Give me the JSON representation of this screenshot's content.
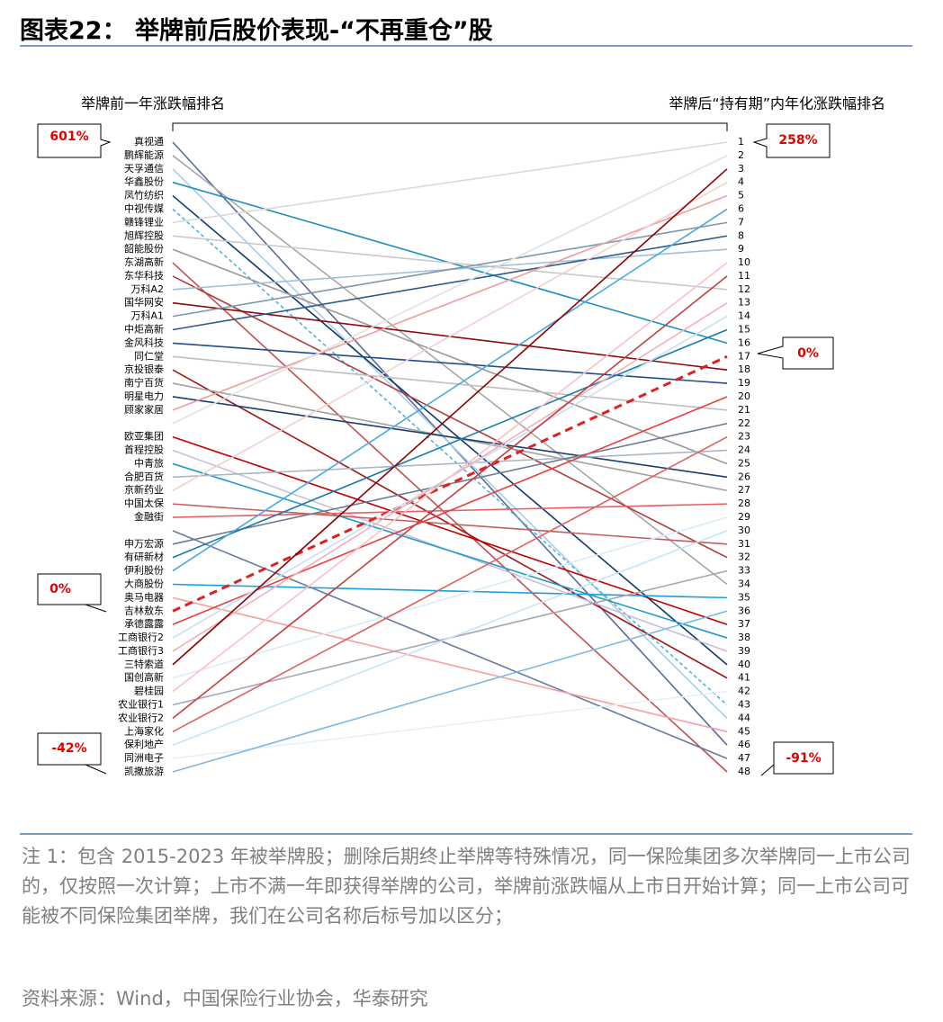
{
  "chart_data": {
    "type": "slope",
    "title": "图表22： 举牌前后股价表现-“不再重仓”股",
    "left_axis_label": "举牌前一年涨跌幅排名",
    "right_axis_label": "举牌后“持有期”内年化涨跌幅排名",
    "categories": [
      "真视通",
      "鹏辉能源",
      "天孚通信",
      "华鑫股份",
      "凤竹纺织",
      "中视传媒",
      "赣锋锂业",
      "旭辉控股",
      "韶能股份",
      "东湖高新",
      "东华科技",
      "万科A2",
      "国华网安",
      "万科A1",
      "中炬高新",
      "金风科技",
      "同仁堂",
      "京投银泰",
      "南宁百货",
      "明星电力",
      "顾家家居",
      null,
      "欧亚集团",
      "首程控股",
      "中青旅",
      "合肥百货",
      "京新药业",
      "中国太保",
      "金融街",
      null,
      "申万宏源",
      "有研新材",
      "伊利股份",
      "大商股份",
      "奥马电器",
      "吉林敖东",
      "承德露露",
      "工商银行2",
      "工商银行3",
      "三特索道",
      "国创高新",
      "碧桂园",
      "农业银行1",
      "农业银行2",
      "上海家化",
      "保利地产",
      "同洲电子",
      "凯撒旅游"
    ],
    "values": [
      46,
      34,
      44,
      16,
      40,
      43,
      1,
      12,
      25,
      48,
      32,
      9,
      18,
      7,
      8,
      19,
      21,
      41,
      27,
      26,
      5,
      2,
      37,
      39,
      38,
      24,
      4,
      31,
      28,
      47,
      22,
      15,
      6,
      35,
      45,
      17,
      20,
      14,
      13,
      3,
      29,
      10,
      33,
      11,
      23,
      30,
      42,
      36
    ],
    "colors": [
      "#5a6a9a",
      "#a6a6a6",
      "#a9cde8",
      "#1b8fc0",
      "#0f3a6b",
      "#4db3e0",
      "#d9d9d9",
      "#c8c8c8",
      "#9a9a9a",
      "#c0504d",
      "#b03a3a",
      "#9fc0d6",
      "#8b0a0a",
      "#7f97a8",
      "#2e5a8a",
      "#1f4e8c",
      "#bfbfbf",
      "#a01818",
      "#a0a0a0",
      "#1a3e6e",
      "#e8a0a0",
      "#e0e0e0",
      "#c00000",
      "#c5c0d8",
      "#1f9cc8",
      "#a8b8c8",
      "#f0d0d0",
      "#c06060",
      "#e86060",
      "#6a7aa0",
      "#6b7b93",
      "#1a7aa8",
      "#4aa8e0",
      "#1aa0d8",
      "#f4a0a0",
      "#e02020",
      "#e84040",
      "#c8dff0",
      "#f0b0b8",
      "#8b0000",
      "#d8ecf8",
      "#f8c0c8",
      "#a0a8b8",
      "#c04040",
      "#e06060",
      "#c8e4f4",
      "#e4f0f8",
      "#80b8e0"
    ],
    "dashed": [
      5,
      35
    ],
    "ylim": [
      1,
      48
    ],
    "yticks": [
      1,
      2,
      3,
      4,
      5,
      6,
      7,
      8,
      9,
      10,
      11,
      12,
      13,
      14,
      15,
      16,
      17,
      18,
      19,
      20,
      21,
      22,
      23,
      24,
      25,
      26,
      27,
      28,
      29,
      30,
      31,
      32,
      33,
      34,
      35,
      36,
      37,
      38,
      39,
      40,
      41,
      42,
      43,
      44,
      45,
      46,
      47,
      48
    ],
    "annotations": [
      "601%",
      "0%",
      "-42%",
      "258%",
      "0%",
      "-91%"
    ],
    "note": "注 1：包含 2015-2023 年被举牌股；删除后期终止举牌等特殊情况，同一保险集团多次举牌同一上市公司的，仅按照一次计算；上市不满一年即获得举牌的公司，举牌前涨跌幅从上市日开始计算；同一上市公司可能被不同保险集团举牌，我们在公司名称后标号加以区分；",
    "source": "资料来源：Wind，中国保险行业协会，华泰研究"
  }
}
